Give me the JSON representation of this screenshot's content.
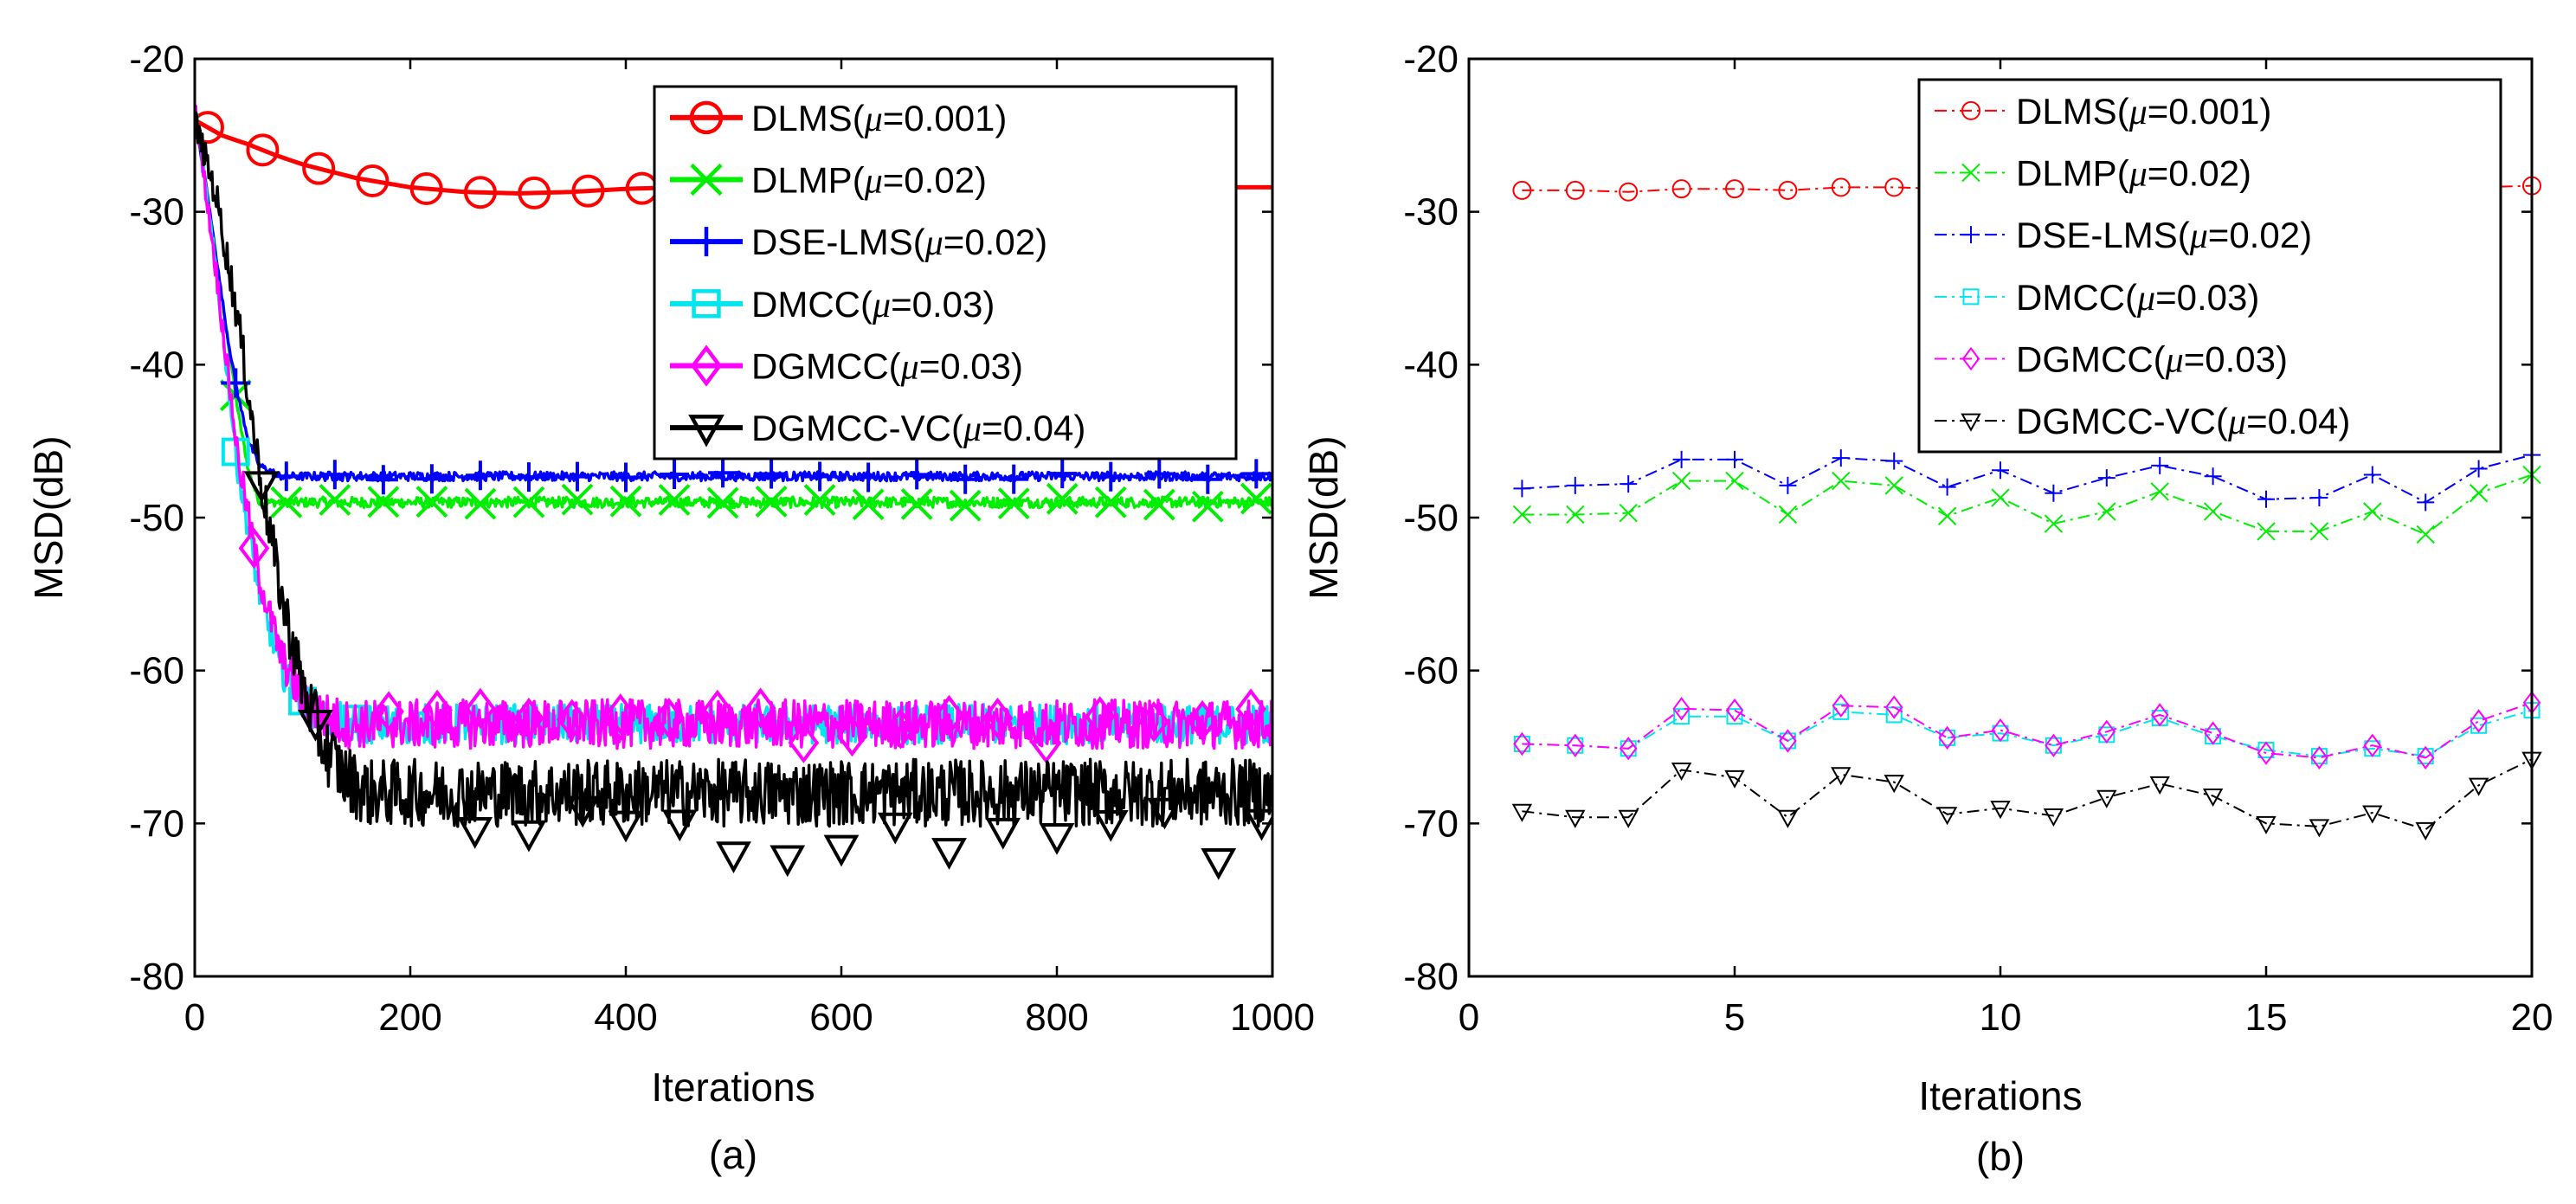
{
  "figure": {
    "colors": {
      "DLMS": "#ff0000",
      "DLMP": "#00ee00",
      "DSE-LMS": "#0000ff",
      "DMCC": "#00e5ee",
      "DGMCC": "#ff00ff",
      "DGMCC-VC": "#000000"
    }
  },
  "chart_data": [
    {
      "type": "line",
      "caption": "(a)",
      "xlabel": "Iterations",
      "ylabel": "MSD(dB)",
      "xlim": [
        0,
        1000
      ],
      "ylim": [
        -80,
        -20
      ],
      "xticks": [
        "0",
        "200",
        "400",
        "600",
        "800",
        "1000"
      ],
      "yticks": [
        "-20",
        "-30",
        "-40",
        "-50",
        "-60",
        "-70",
        "-80"
      ],
      "legend_position": "top-right",
      "series": [
        {
          "name": "DLMS",
          "label_prefix": "DLMS(",
          "mu": "μ",
          "label_suffix": "=0.001)",
          "marker": "circle",
          "points": [
            [
              0,
              -24
            ],
            [
              25,
              -25
            ],
            [
              50,
              -25.6
            ],
            [
              75,
              -26.3
            ],
            [
              100,
              -26.9
            ],
            [
              150,
              -27.8
            ],
            [
              200,
              -28.4
            ],
            [
              250,
              -28.7
            ],
            [
              300,
              -28.8
            ],
            [
              350,
              -28.7
            ],
            [
              400,
              -28.5
            ],
            [
              450,
              -28.4
            ],
            [
              500,
              -28.3
            ],
            [
              600,
              -28.3
            ],
            [
              700,
              -28.4
            ],
            [
              800,
              -28.4
            ],
            [
              900,
              -28.4
            ],
            [
              1000,
              -28.4
            ]
          ],
          "markers_x": [
            12,
            63,
            115,
            165,
            215,
            265,
            315,
            365,
            415
          ]
        },
        {
          "name": "DLMP",
          "label_prefix": "DLMP(",
          "mu": "μ",
          "label_suffix": "=0.02)",
          "marker": "x",
          "points": [
            [
              0,
              -24
            ],
            [
              10,
              -28
            ],
            [
              20,
              -33
            ],
            [
              30,
              -38
            ],
            [
              40,
              -43
            ],
            [
              50,
              -47
            ],
            [
              60,
              -49
            ],
            [
              70,
              -49
            ],
            [
              1000,
              -49
            ]
          ],
          "noise": 0.35,
          "markers_x": [
            38,
            85,
            130,
            175,
            220,
            265,
            310,
            355,
            400,
            445,
            490,
            535,
            580,
            625,
            670,
            715,
            760,
            805,
            850,
            895,
            940,
            985
          ]
        },
        {
          "name": "DSE-LMS",
          "label_prefix": "DSE-LMS(",
          "mu": "μ",
          "label_suffix": "=0.02)",
          "marker": "plus",
          "points": [
            [
              0,
              -24
            ],
            [
              10,
              -28
            ],
            [
              20,
              -33
            ],
            [
              30,
              -38
            ],
            [
              40,
              -42
            ],
            [
              50,
              -45
            ],
            [
              60,
              -46.6
            ],
            [
              80,
              -47.3
            ],
            [
              1000,
              -47.3
            ]
          ],
          "noise": 0.3,
          "markers_x": [
            38,
            85,
            130,
            175,
            220,
            265,
            310,
            355,
            400,
            445,
            490,
            535,
            580,
            625,
            670,
            715,
            760,
            805,
            850,
            895,
            940,
            985
          ]
        },
        {
          "name": "DMCC",
          "label_prefix": "DMCC(",
          "mu": "μ",
          "label_suffix": "=0.03)",
          "marker": "square",
          "points": [
            [
              0,
              -23
            ],
            [
              20,
              -34
            ],
            [
              40,
              -47
            ],
            [
              60,
              -55
            ],
            [
              80,
              -60
            ],
            [
              100,
              -62
            ],
            [
              120,
              -63
            ],
            [
              140,
              -63.5
            ],
            [
              1000,
              -63.5
            ]
          ],
          "noise": 1.3,
          "markers_x": [
            38,
            100,
            150
          ]
        },
        {
          "name": "DGMCC",
          "label_prefix": "DGMCC(",
          "mu": "μ",
          "label_suffix": "=0.03)",
          "marker": "diamond",
          "points": [
            [
              0,
              -23
            ],
            [
              20,
              -34
            ],
            [
              40,
              -46
            ],
            [
              60,
              -54
            ],
            [
              80,
              -59
            ],
            [
              100,
              -62
            ],
            [
              120,
              -63
            ],
            [
              140,
              -63.5
            ],
            [
              1000,
              -63.5
            ]
          ],
          "noise": 1.6,
          "markers_x": [
            55,
            180,
            225,
            265,
            310,
            350,
            395,
            440,
            485,
            525,
            565,
            610,
            655,
            700,
            745,
            790,
            840,
            890,
            935,
            980
          ]
        },
        {
          "name": "DGMCC-VC",
          "label_prefix": "DGMCC-VC(",
          "mu": "μ",
          "label_suffix": "=0.04)",
          "marker": "triangle-down",
          "points": [
            [
              0,
              -24
            ],
            [
              20,
              -29
            ],
            [
              40,
              -37
            ],
            [
              60,
              -47
            ],
            [
              80,
              -55
            ],
            [
              100,
              -61
            ],
            [
              120,
              -65
            ],
            [
              140,
              -67
            ],
            [
              160,
              -68
            ],
            [
              1000,
              -68
            ]
          ],
          "noise": 2.2,
          "markers_x": [
            62,
            112,
            260,
            310,
            360,
            400,
            450,
            500,
            550,
            600,
            650,
            700,
            750,
            800,
            850,
            900,
            950,
            990
          ]
        }
      ]
    },
    {
      "type": "line",
      "caption": "(b)",
      "xlabel": "Iterations",
      "ylabel": "MSD(dB)",
      "xlim": [
        0,
        20
      ],
      "ylim": [
        -80,
        -20
      ],
      "xticks": [
        "0",
        "5",
        "10",
        "15",
        "20"
      ],
      "yticks": [
        "-20",
        "-30",
        "-40",
        "-50",
        "-60",
        "-70",
        "-80"
      ],
      "legend_position": "top-right",
      "x": [
        1,
        2,
        3,
        4,
        5,
        6,
        7,
        8,
        9,
        10,
        11,
        12,
        13,
        14,
        15,
        16,
        17,
        18,
        19,
        20
      ],
      "series": [
        {
          "name": "DLMS",
          "label_prefix": "DLMS(",
          "mu": "μ",
          "label_suffix": "=0.001)",
          "marker": "circle",
          "values": [
            -28.6,
            -28.6,
            -28.7,
            -28.5,
            -28.5,
            -28.6,
            -28.4,
            -28.4,
            -28.5,
            -28.5,
            -28.4,
            -28.5,
            -28.4,
            -28.6,
            -28.4,
            -28.5,
            -28.5,
            -28.6,
            -28.4,
            -28.3
          ]
        },
        {
          "name": "DLMP",
          "label_prefix": "DLMP(",
          "mu": "μ",
          "label_suffix": "=0.02)",
          "marker": "x",
          "values": [
            -49.8,
            -49.8,
            -49.7,
            -47.6,
            -47.6,
            -49.8,
            -47.6,
            -47.9,
            -49.9,
            -48.7,
            -50.4,
            -49.6,
            -48.3,
            -49.6,
            -50.9,
            -50.9,
            -49.6,
            -51.1,
            -48.4,
            -47.2
          ]
        },
        {
          "name": "DSE-LMS",
          "label_prefix": "DSE-LMS(",
          "mu": "μ",
          "label_suffix": "=0.02)",
          "marker": "plus",
          "values": [
            -48.1,
            -47.9,
            -47.8,
            -46.2,
            -46.2,
            -47.9,
            -46.1,
            -46.3,
            -48.0,
            -46.9,
            -48.4,
            -47.4,
            -46.6,
            -47.3,
            -48.8,
            -48.7,
            -47.2,
            -49.0,
            -46.8,
            -45.9
          ]
        },
        {
          "name": "DMCC",
          "label_prefix": "DMCC(",
          "mu": "μ",
          "label_suffix": "=0.03)",
          "marker": "square",
          "values": [
            -64.8,
            -64.9,
            -65.1,
            -63.0,
            -63.0,
            -64.6,
            -62.7,
            -62.9,
            -64.4,
            -64.1,
            -64.9,
            -64.2,
            -63.1,
            -64.3,
            -65.2,
            -65.6,
            -65.1,
            -65.6,
            -63.6,
            -62.6
          ]
        },
        {
          "name": "DGMCC",
          "label_prefix": "DGMCC(",
          "mu": "μ",
          "label_suffix": "=0.03)",
          "marker": "diamond",
          "values": [
            -64.8,
            -64.9,
            -65.1,
            -62.5,
            -62.6,
            -64.6,
            -62.3,
            -62.4,
            -64.4,
            -63.9,
            -64.9,
            -64.0,
            -62.9,
            -64.1,
            -65.4,
            -65.7,
            -64.9,
            -65.7,
            -63.3,
            -62.1
          ]
        },
        {
          "name": "DGMCC-VC",
          "label_prefix": "DGMCC-VC(",
          "mu": "μ",
          "label_suffix": "=0.04)",
          "marker": "triangle-down",
          "values": [
            -69.2,
            -69.6,
            -69.6,
            -66.5,
            -67.0,
            -69.6,
            -66.8,
            -67.3,
            -69.4,
            -69.0,
            -69.5,
            -68.3,
            -67.4,
            -68.2,
            -70.0,
            -70.2,
            -69.3,
            -70.4,
            -67.5,
            -65.8
          ]
        }
      ]
    }
  ]
}
